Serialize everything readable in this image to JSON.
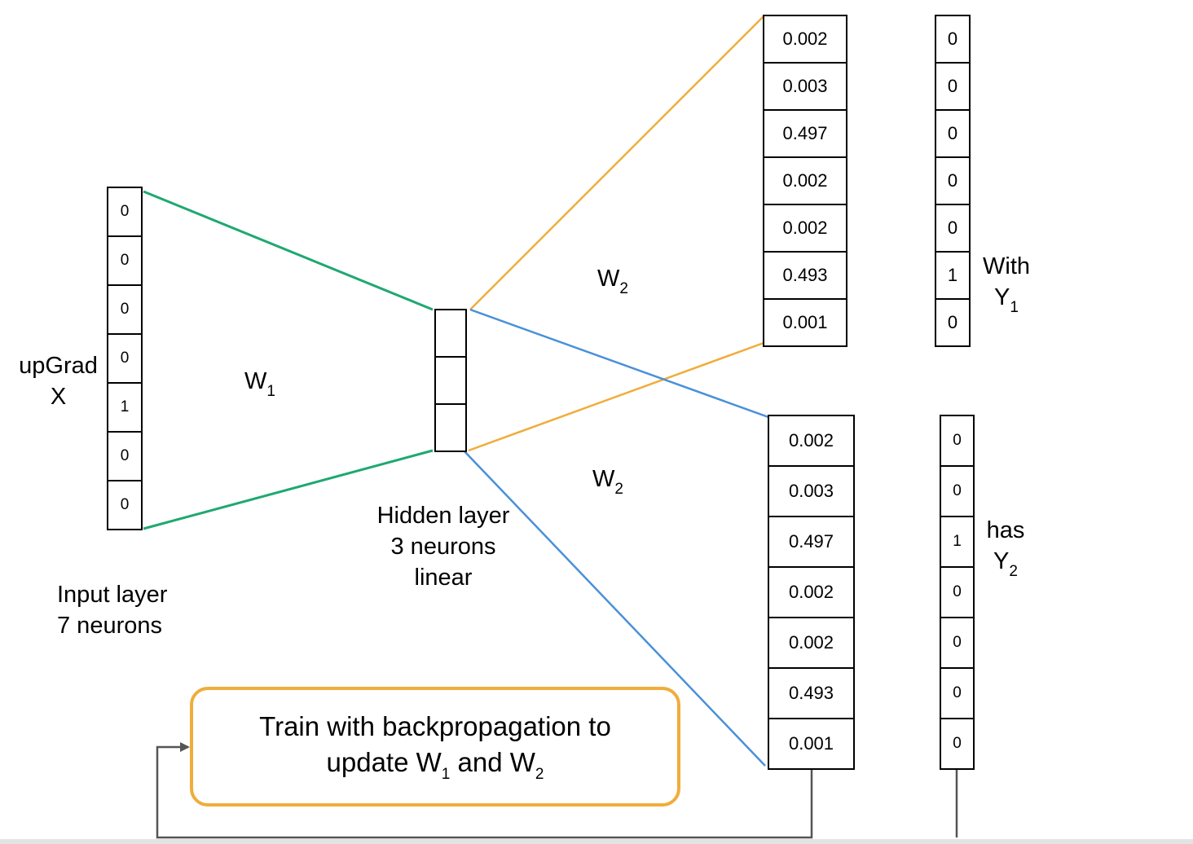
{
  "input_layer": {
    "values": [
      "0",
      "0",
      "0",
      "0",
      "1",
      "0",
      "0"
    ],
    "name_line1": "upGrad",
    "name_line2": "X",
    "caption_line1": "Input layer",
    "caption_line2": "7 neurons"
  },
  "hidden_layer": {
    "cell_count": 3,
    "caption_line1": "Hidden layer",
    "caption_line2": "3 neurons",
    "caption_line3": "linear"
  },
  "weights": {
    "w1": "W",
    "w1_sub": "1",
    "w2_top": "W",
    "w2_top_sub": "2",
    "w2_bottom": "W",
    "w2_bottom_sub": "2"
  },
  "output_top": {
    "values": [
      "0.002",
      "0.003",
      "0.497",
      "0.002",
      "0.002",
      "0.493",
      "0.001"
    ]
  },
  "target_top": {
    "values": [
      "0",
      "0",
      "0",
      "0",
      "0",
      "1",
      "0"
    ],
    "word": "With",
    "symbol": "Y",
    "symbol_sub": "1"
  },
  "output_bottom": {
    "values": [
      "0.002",
      "0.003",
      "0.497",
      "0.002",
      "0.002",
      "0.493",
      "0.001"
    ]
  },
  "target_bottom": {
    "values": [
      "0",
      "0",
      "1",
      "0",
      "0",
      "0",
      "0"
    ],
    "word": "has",
    "symbol": "Y",
    "symbol_sub": "2"
  },
  "train_box": {
    "line1": "Train with backpropagation to",
    "line2_prefix": "update W",
    "line2_sub1": "1",
    "line2_mid": " and W",
    "line2_sub2": "2"
  },
  "colors": {
    "input_to_hidden": "#1fa870",
    "hidden_to_top": "#f0ad3b",
    "hidden_to_bottom": "#4a90d9",
    "feedback": "#555555",
    "train_border": "#f0ad3b"
  }
}
